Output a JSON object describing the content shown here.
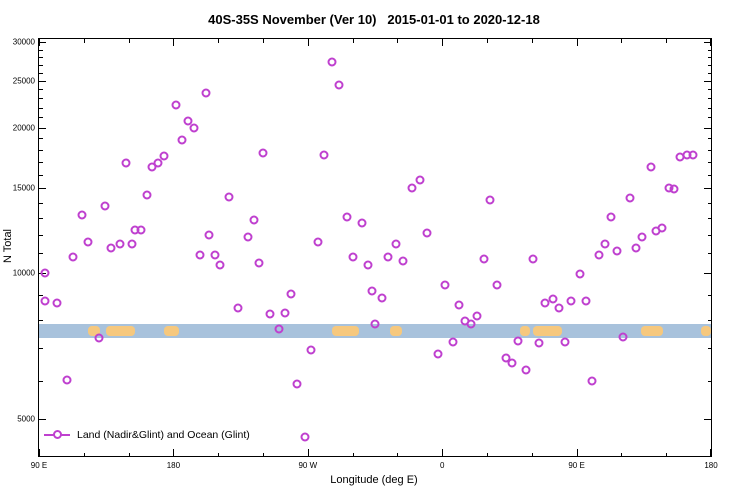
{
  "title": "40S-35S November (Ver 10)   2015-01-01 to 2020-12-18",
  "chart_data": {
    "type": "scatter",
    "title": "40S-35S November (Ver 10)   2015-01-01 to 2020-12-18",
    "xlabel": "Longitude (deg E)",
    "ylabel": "N Total",
    "grid": false,
    "x_axis": {
      "min": 90,
      "max": 540,
      "ticks": [
        {
          "value": 90,
          "label": "90 E"
        },
        {
          "value": 180,
          "label": "180"
        },
        {
          "value": 270,
          "label": "90 W"
        },
        {
          "value": 360,
          "label": "0"
        },
        {
          "value": 450,
          "label": "90 E"
        },
        {
          "value": 540,
          "label": "180"
        }
      ],
      "minor_ticks": [
        120,
        150,
        210,
        240,
        300,
        330,
        390,
        420,
        480,
        510
      ]
    },
    "y_axis": {
      "scale": "log",
      "min": 4190,
      "max": 30500,
      "ticks": [
        {
          "value": 5000,
          "label": "5000"
        },
        {
          "value": 10000,
          "label": "10000"
        },
        {
          "value": 15000,
          "label": "15000"
        },
        {
          "value": 20000,
          "label": "20000"
        },
        {
          "value": 25000,
          "label": "25000"
        },
        {
          "value": 30000,
          "label": "30000"
        }
      ],
      "minor_ticks": [
        6000,
        7000,
        8000,
        9000,
        11000,
        12000,
        13000,
        14000,
        16000,
        17000,
        18000,
        19000,
        21000,
        22000,
        23000,
        24000,
        26000,
        27000,
        28000,
        29000
      ]
    },
    "band": {
      "y_min": 7350,
      "y_max": 7870,
      "color": "#a8c2dc",
      "patch_color": "#f6c87e",
      "patches": [
        {
          "x_min": 123,
          "x_max": 131
        },
        {
          "x_min": 135,
          "x_max": 154
        },
        {
          "x_min": 174,
          "x_max": 184
        },
        {
          "x_min": 286,
          "x_max": 304
        },
        {
          "x_min": 325,
          "x_max": 333
        },
        {
          "x_min": 412,
          "x_max": 419
        },
        {
          "x_min": 421,
          "x_max": 440
        },
        {
          "x_min": 493,
          "x_max": 508
        },
        {
          "x_min": 533,
          "x_max": 540
        }
      ]
    },
    "legend": {
      "label": "Land (Nadir&Glint) and Ocean (Glint)",
      "position": "bottom-left"
    },
    "series": [
      {
        "name": "Land (Nadir&Glint) and Ocean (Glint)",
        "color": "#bf40cf",
        "marker": "open-circle",
        "points": [
          [
            94,
            10000
          ],
          [
            94,
            8750
          ],
          [
            102,
            8700
          ],
          [
            109,
            6030
          ],
          [
            113,
            10800
          ],
          [
            119,
            13200
          ],
          [
            123,
            11600
          ],
          [
            130,
            7350
          ],
          [
            134,
            13800
          ],
          [
            138,
            11300
          ],
          [
            144,
            11500
          ],
          [
            148,
            16900
          ],
          [
            152,
            11500
          ],
          [
            154,
            12300
          ],
          [
            158,
            12300
          ],
          [
            162,
            14500
          ],
          [
            166,
            16600
          ],
          [
            170,
            16900
          ],
          [
            174,
            17500
          ],
          [
            182,
            22300
          ],
          [
            186,
            18900
          ],
          [
            190,
            20600
          ],
          [
            194,
            20000
          ],
          [
            198,
            10900
          ],
          [
            202,
            23600
          ],
          [
            204,
            12000
          ],
          [
            208,
            10900
          ],
          [
            211,
            10400
          ],
          [
            217,
            14400
          ],
          [
            223,
            8470
          ],
          [
            230,
            11900
          ],
          [
            234,
            12900
          ],
          [
            237,
            10500
          ],
          [
            240,
            17700
          ],
          [
            245,
            8230
          ],
          [
            251,
            7660
          ],
          [
            255,
            8260
          ],
          [
            259,
            9080
          ],
          [
            263,
            5900
          ],
          [
            268,
            4580
          ],
          [
            272,
            6940
          ],
          [
            277,
            11600
          ],
          [
            281,
            17600
          ],
          [
            286,
            27400
          ],
          [
            291,
            24500
          ],
          [
            296,
            13100
          ],
          [
            300,
            10800
          ],
          [
            306,
            12700
          ],
          [
            310,
            10400
          ],
          [
            313,
            9170
          ],
          [
            315,
            7870
          ],
          [
            320,
            8880
          ],
          [
            324,
            10800
          ],
          [
            329,
            11500
          ],
          [
            334,
            10600
          ],
          [
            340,
            15000
          ],
          [
            345,
            15600
          ],
          [
            350,
            12100
          ],
          [
            357,
            6810
          ],
          [
            362,
            9460
          ],
          [
            367,
            7210
          ],
          [
            371,
            8600
          ],
          [
            375,
            7950
          ],
          [
            379,
            7870
          ],
          [
            383,
            8150
          ],
          [
            388,
            10700
          ],
          [
            392,
            14200
          ],
          [
            397,
            9460
          ],
          [
            403,
            6690
          ],
          [
            407,
            6510
          ],
          [
            411,
            7240
          ],
          [
            416,
            6300
          ],
          [
            421,
            10700
          ],
          [
            425,
            7180
          ],
          [
            429,
            8680
          ],
          [
            434,
            8840
          ],
          [
            438,
            8480
          ],
          [
            442,
            7210
          ],
          [
            446,
            8760
          ],
          [
            452,
            9950
          ],
          [
            456,
            8760
          ],
          [
            460,
            6000
          ],
          [
            465,
            10900
          ],
          [
            469,
            11500
          ],
          [
            473,
            13100
          ],
          [
            477,
            11100
          ],
          [
            481,
            7380
          ],
          [
            486,
            14300
          ],
          [
            490,
            11300
          ],
          [
            494,
            11900
          ],
          [
            500,
            16600
          ],
          [
            503,
            12200
          ],
          [
            507,
            12400
          ],
          [
            512,
            15000
          ],
          [
            515,
            14900
          ],
          [
            519,
            17400
          ],
          [
            524,
            17600
          ],
          [
            528,
            17600
          ]
        ]
      }
    ]
  }
}
